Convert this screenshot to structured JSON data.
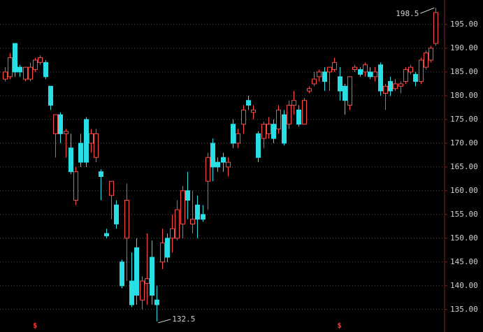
{
  "chart_data": {
    "type": "candlestick",
    "open": [
      183.5,
      184,
      191,
      186,
      183.5,
      183.5,
      185.5,
      187,
      187,
      182,
      172,
      176,
      172,
      169,
      158,
      170,
      175,
      170,
      167,
      164,
      151,
      159,
      157,
      145,
      150,
      141,
      148,
      137,
      140.5,
      146,
      137,
      145,
      150,
      150,
      150,
      153,
      160,
      153,
      157,
      155,
      162,
      170,
      166,
      167,
      165,
      174,
      170,
      174,
      179,
      176.5,
      172,
      171,
      172,
      174,
      173,
      176,
      174,
      178,
      177,
      174,
      181,
      182.5,
      184,
      185,
      185,
      185.5,
      184,
      182,
      178,
      185.5,
      185.5,
      185,
      185,
      184,
      186.5,
      180.5,
      183,
      181.5,
      182,
      183,
      185,
      184.5,
      183,
      186,
      187.5,
      191
    ],
    "high": [
      186,
      189,
      191,
      186.5,
      186,
      187,
      188,
      188.5,
      187.5,
      182,
      176,
      176.5,
      173,
      172,
      165,
      172,
      175.5,
      173,
      173,
      164.5,
      152,
      162,
      158,
      145.5,
      161.5,
      147,
      150,
      142,
      151,
      149.5,
      140,
      152,
      151,
      155,
      158,
      161,
      164,
      160,
      159,
      157,
      168,
      171,
      167,
      168,
      167,
      175,
      173,
      178,
      180,
      178,
      172.5,
      174.5,
      175.5,
      175,
      178,
      177,
      179,
      181,
      178,
      179.5,
      182,
      185,
      185.5,
      186,
      186,
      188,
      186,
      182.5,
      184,
      186.5,
      186,
      187,
      186,
      186,
      187,
      182.5,
      184,
      183.5,
      183,
      186,
      186.5,
      185,
      188,
      189.5,
      190.5,
      198.5
    ],
    "low": [
      183,
      183.5,
      184,
      184,
      183,
      183,
      185,
      186.5,
      183.5,
      177,
      167,
      170,
      167,
      163.5,
      157,
      165,
      165,
      168,
      166,
      158,
      150,
      154,
      152,
      139.5,
      141,
      135.5,
      136,
      135,
      136,
      136,
      132.5,
      143.5,
      145,
      147,
      149.5,
      150,
      154,
      151,
      150,
      153.5,
      156,
      162,
      164,
      164,
      163,
      169,
      169,
      172,
      177,
      175,
      166,
      169,
      171,
      170,
      172,
      169.5,
      173,
      176,
      173.5,
      174,
      180.5,
      182,
      183,
      181,
      181,
      185,
      179,
      176,
      177,
      185,
      184,
      184,
      183.5,
      183,
      180,
      177,
      180,
      181,
      180.5,
      182.5,
      184.5,
      182,
      182.5,
      185.5,
      187,
      190.5
    ],
    "close": [
      185,
      188,
      185,
      185,
      186,
      186,
      187.5,
      188,
      184,
      178,
      176,
      172,
      172.5,
      164,
      164,
      166,
      166,
      172,
      172,
      163,
      150.5,
      162,
      153,
      140,
      158,
      136,
      138,
      141,
      141.5,
      138,
      136,
      149,
      146,
      152,
      156,
      160,
      158,
      154,
      154,
      154,
      167,
      165,
      165,
      166,
      166,
      170,
      172,
      177,
      178,
      177,
      167,
      174,
      174,
      171,
      177,
      170,
      178,
      179,
      174,
      179,
      181.5,
      183.5,
      185,
      183,
      186,
      187,
      181,
      179,
      184,
      186,
      184.5,
      186.5,
      184,
      185,
      181,
      182,
      181,
      182.5,
      182.5,
      185.5,
      186,
      183,
      187.5,
      189,
      190,
      197.5
    ],
    "up_color": "#ff4a4a",
    "down_color": "#29dfe6",
    "ylim": [
      131,
      200
    ],
    "yticks": [
      {
        "value": 135,
        "label": "135.00"
      },
      {
        "value": 140,
        "label": "140.00"
      },
      {
        "value": 145,
        "label": "145.00"
      },
      {
        "value": 150,
        "label": "150.00"
      },
      {
        "value": 155,
        "label": "155.00"
      },
      {
        "value": 160,
        "label": "160.00"
      },
      {
        "value": 165,
        "label": "165.00"
      },
      {
        "value": 170,
        "label": "170.00"
      },
      {
        "value": 175,
        "label": "175.00"
      },
      {
        "value": 180,
        "label": "180.00"
      },
      {
        "value": 185,
        "label": "185.00"
      },
      {
        "value": 190,
        "label": "190.00"
      },
      {
        "value": 195,
        "label": "195.00"
      }
    ],
    "grid": true,
    "high_label": "198.5",
    "low_label": "132.5",
    "events": [
      "$",
      "$"
    ]
  }
}
